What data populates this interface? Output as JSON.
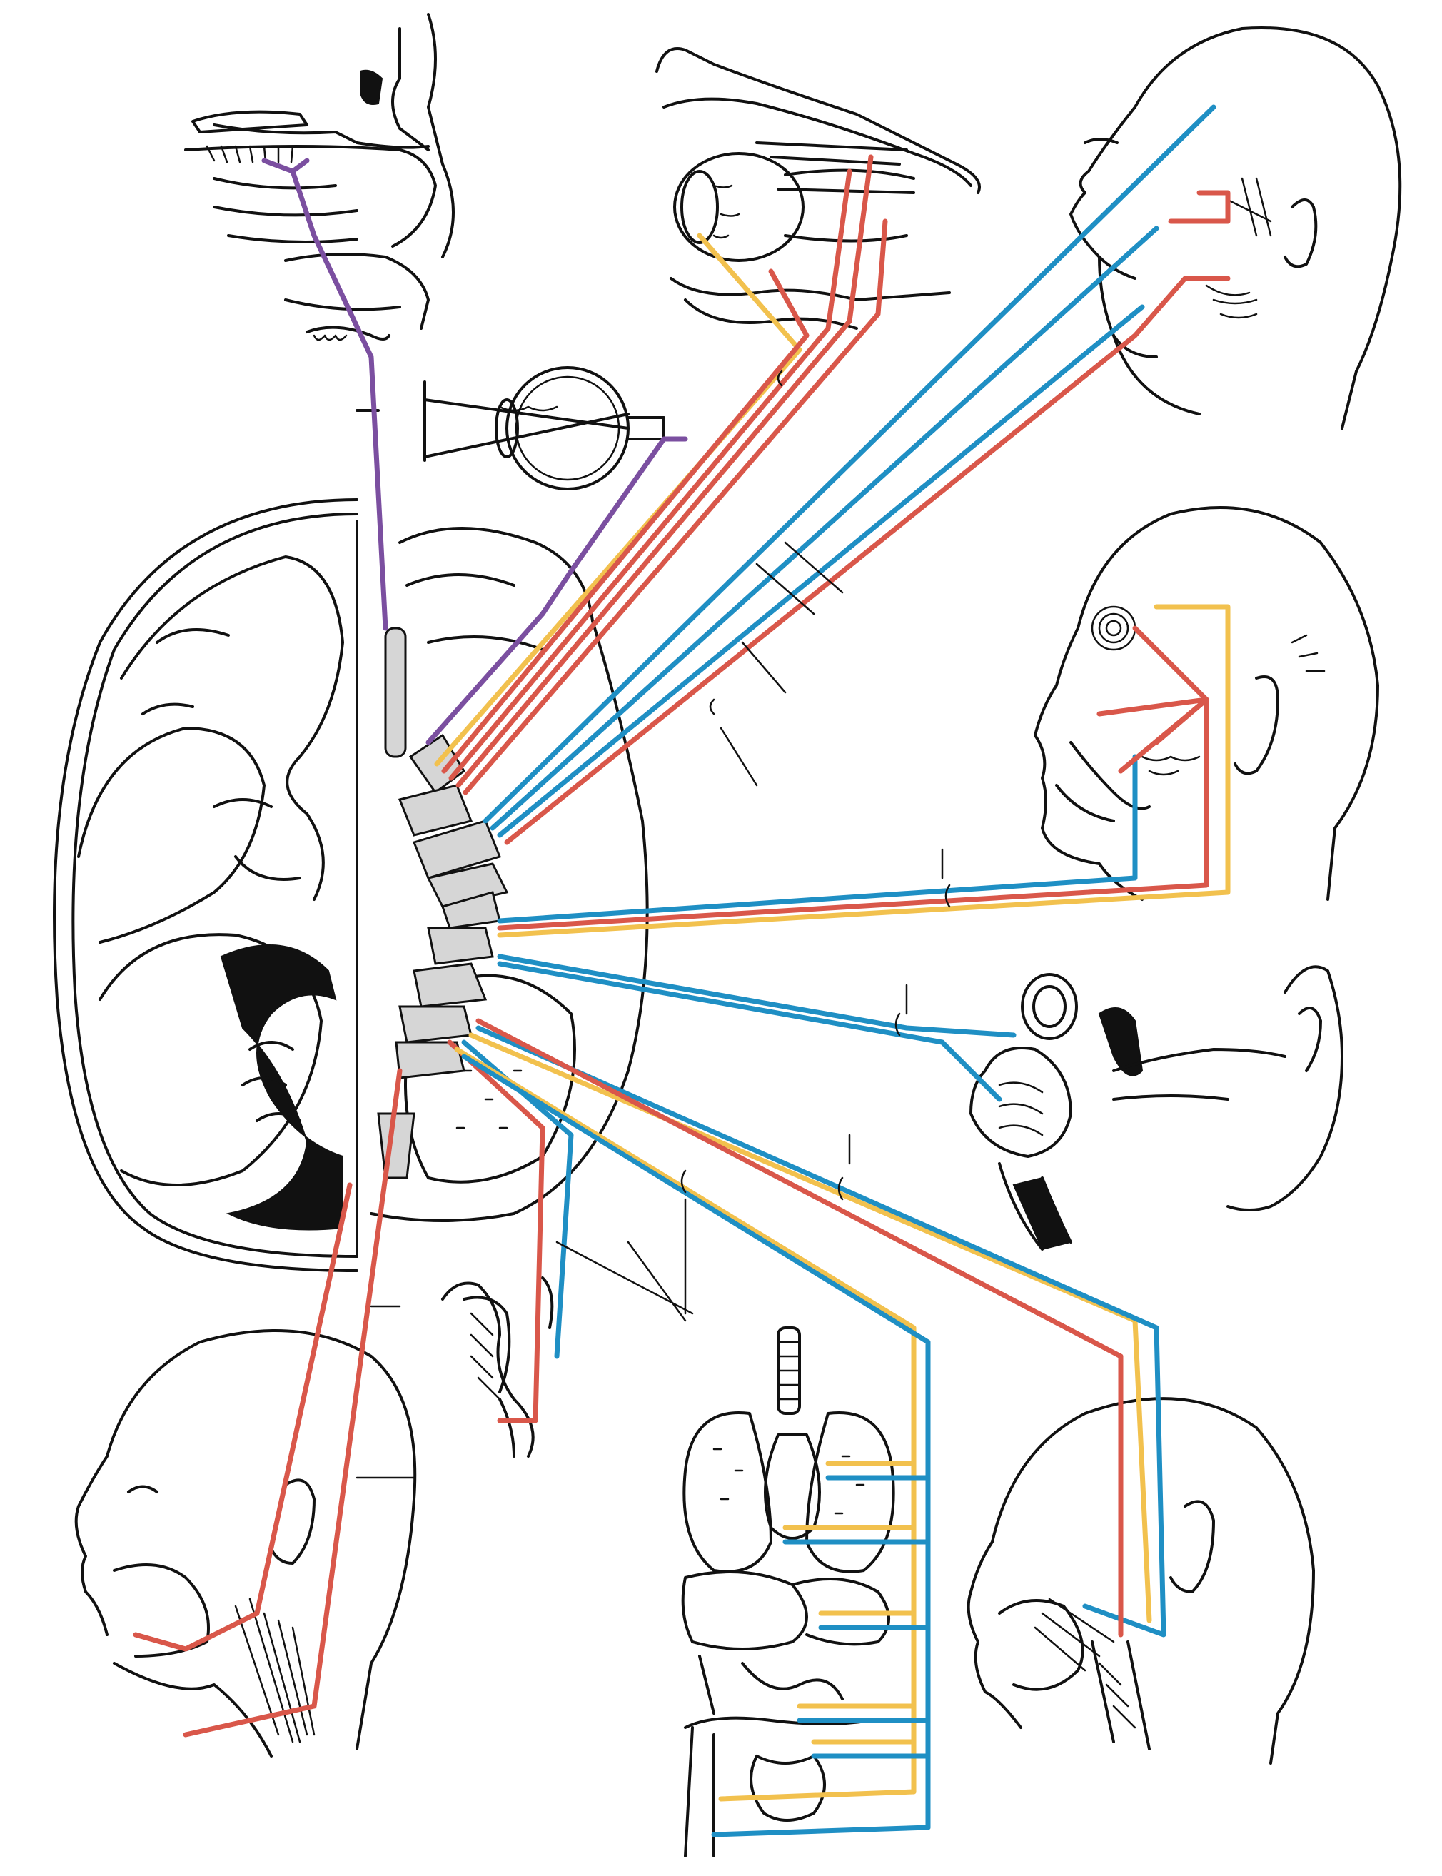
{
  "colors": {
    "motor": "#d9574a",
    "sensory": "#1f8fc4",
    "parasympathetic": "#f2c14e",
    "olfactory": "#7b4fa0",
    "optic": "#7b4fa0",
    "ink": "#111111",
    "nerve_root_fill": "#d6d6d6",
    "background": "#ffffff"
  },
  "figure": {
    "central_structure": "brain-sagittal-section-with-skull",
    "target_regions": [
      "nasal-cavity",
      "orbit-and-eye-muscles",
      "face-trigeminal",
      "eyeball-retina",
      "face-muscles-facial-nerve",
      "inner-ear",
      "neck-muscles",
      "pharynx-larynx",
      "thoracic-abdominal-viscera",
      "tongue-and-pharynx"
    ]
  }
}
